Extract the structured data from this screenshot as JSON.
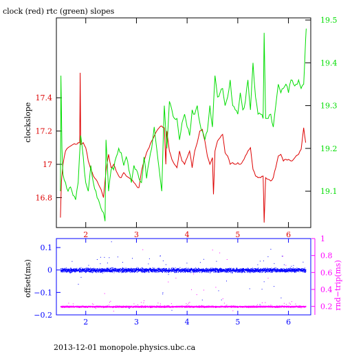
{
  "title": "clock (red) rtc (green) slopes",
  "footer": "2013-12-01 monopole.physics.ubc.ca",
  "colors": {
    "red": "#dd0000",
    "green": "#00dd00",
    "blue": "#0000ff",
    "magenta": "#ff00ff",
    "black": "#000000"
  },
  "chart_data": [
    {
      "type": "line",
      "title": "clock (red) rtc (green) slopes",
      "xlim": [
        1.42,
        6.44
      ],
      "x_ticks": [
        2,
        3,
        4,
        5,
        6
      ],
      "ylabel": "clockslope",
      "ylim": [
        16.62,
        17.88
      ],
      "y_ticks": [
        16.8,
        17,
        17.2,
        17.4
      ],
      "y2lim": [
        19.015,
        19.505
      ],
      "y2_ticks": [
        19.1,
        19.2,
        19.3,
        19.4,
        19.5
      ],
      "grid": false,
      "series": [
        {
          "name": "clock",
          "axis": "left",
          "color": "red",
          "x": [
            1.5,
            1.52,
            1.55,
            1.6,
            1.65,
            1.7,
            1.75,
            1.8,
            1.85,
            1.88,
            1.89,
            1.9,
            1.95,
            2.0,
            2.05,
            2.1,
            2.15,
            2.2,
            2.25,
            2.3,
            2.35,
            2.4,
            2.45,
            2.5,
            2.55,
            2.6,
            2.65,
            2.7,
            2.75,
            2.8,
            2.85,
            2.9,
            2.95,
            3.0,
            3.05,
            3.1,
            3.15,
            3.2,
            3.25,
            3.3,
            3.35,
            3.4,
            3.45,
            3.5,
            3.55,
            3.58,
            3.6,
            3.65,
            3.7,
            3.75,
            3.8,
            3.85,
            3.9,
            3.95,
            4.0,
            4.05,
            4.1,
            4.15,
            4.2,
            4.25,
            4.3,
            4.35,
            4.4,
            4.45,
            4.5,
            4.52,
            4.55,
            4.6,
            4.65,
            4.7,
            4.75,
            4.8,
            4.85,
            4.9,
            4.95,
            5.0,
            5.05,
            5.1,
            5.15,
            5.2,
            5.25,
            5.3,
            5.35,
            5.4,
            5.45,
            5.5,
            5.52,
            5.55,
            5.6,
            5.65,
            5.7,
            5.75,
            5.8,
            5.85,
            5.9,
            5.95,
            6.0,
            6.05,
            6.1,
            6.15,
            6.2,
            6.25,
            6.3,
            6.34
          ],
          "values": [
            16.68,
            16.9,
            17.0,
            17.08,
            17.1,
            17.11,
            17.12,
            17.12,
            17.13,
            17.13,
            17.55,
            17.12,
            17.13,
            17.1,
            17.02,
            16.97,
            16.93,
            16.91,
            16.88,
            16.85,
            16.8,
            16.96,
            17.06,
            16.98,
            17.0,
            16.96,
            16.93,
            16.92,
            16.95,
            16.93,
            16.92,
            16.91,
            16.89,
            16.87,
            16.86,
            16.96,
            17.02,
            17.07,
            17.1,
            17.14,
            17.17,
            17.2,
            17.22,
            17.23,
            17.22,
            17.0,
            17.2,
            17.08,
            17.03,
            17.0,
            16.98,
            17.08,
            17.02,
            17.0,
            17.04,
            17.08,
            16.98,
            17.08,
            17.13,
            17.2,
            17.21,
            17.14,
            17.05,
            17.0,
            17.04,
            16.82,
            17.08,
            17.14,
            17.16,
            17.18,
            17.07,
            17.05,
            17.0,
            17.01,
            17.0,
            17.01,
            17.0,
            17.02,
            17.05,
            17.08,
            17.1,
            16.97,
            16.93,
            16.92,
            16.92,
            16.93,
            16.65,
            16.92,
            16.91,
            16.9,
            16.92,
            16.98,
            17.05,
            17.06,
            17.02,
            17.03,
            17.03,
            17.02,
            17.03,
            17.05,
            17.06,
            17.09,
            17.22,
            17.13
          ]
        },
        {
          "name": "rtc",
          "axis": "right",
          "color": "green",
          "x": [
            1.5,
            1.51,
            1.53,
            1.55,
            1.6,
            1.65,
            1.7,
            1.75,
            1.8,
            1.85,
            1.9,
            1.95,
            2.0,
            2.05,
            2.1,
            2.15,
            2.2,
            2.25,
            2.3,
            2.35,
            2.38,
            2.4,
            2.45,
            2.5,
            2.55,
            2.6,
            2.65,
            2.7,
            2.75,
            2.8,
            2.85,
            2.9,
            2.95,
            3.0,
            3.05,
            3.1,
            3.15,
            3.2,
            3.25,
            3.3,
            3.35,
            3.4,
            3.45,
            3.5,
            3.55,
            3.6,
            3.65,
            3.7,
            3.75,
            3.8,
            3.85,
            3.9,
            3.95,
            4.0,
            4.05,
            4.1,
            4.15,
            4.2,
            4.25,
            4.3,
            4.35,
            4.4,
            4.45,
            4.5,
            4.55,
            4.6,
            4.65,
            4.7,
            4.75,
            4.8,
            4.85,
            4.9,
            4.95,
            5.0,
            5.05,
            5.1,
            5.15,
            5.2,
            5.25,
            5.3,
            5.35,
            5.4,
            5.45,
            5.5,
            5.52,
            5.55,
            5.6,
            5.65,
            5.7,
            5.75,
            5.8,
            5.85,
            5.9,
            5.95,
            6.0,
            6.05,
            6.1,
            6.15,
            6.2,
            6.25,
            6.3,
            6.33,
            6.35
          ],
          "values": [
            19.1,
            19.37,
            19.2,
            19.14,
            19.12,
            19.1,
            19.11,
            19.09,
            19.08,
            19.12,
            19.23,
            19.18,
            19.12,
            19.1,
            19.16,
            19.12,
            19.1,
            19.08,
            19.06,
            19.05,
            19.03,
            19.22,
            19.1,
            19.15,
            19.15,
            19.18,
            19.2,
            19.19,
            19.16,
            19.18,
            19.15,
            19.12,
            19.16,
            19.15,
            19.13,
            19.12,
            19.18,
            19.13,
            19.17,
            19.2,
            19.25,
            19.2,
            19.15,
            19.1,
            19.3,
            19.2,
            19.31,
            19.29,
            19.27,
            19.27,
            19.22,
            19.26,
            19.28,
            19.25,
            19.23,
            19.29,
            19.28,
            19.3,
            19.26,
            19.24,
            19.22,
            19.24,
            19.3,
            19.25,
            19.37,
            19.32,
            19.33,
            19.34,
            19.3,
            19.32,
            19.36,
            19.3,
            19.29,
            19.28,
            19.33,
            19.29,
            19.31,
            19.36,
            19.29,
            19.4,
            19.32,
            19.28,
            19.28,
            19.27,
            19.47,
            19.27,
            19.27,
            19.28,
            19.25,
            19.3,
            19.35,
            19.33,
            19.34,
            19.35,
            19.33,
            19.36,
            19.35,
            19.35,
            19.36,
            19.34,
            19.35,
            19.43,
            19.48
          ]
        }
      ]
    },
    {
      "type": "scatter",
      "xlim": [
        1.42,
        6.44
      ],
      "x_ticks": [
        2,
        3,
        4,
        5,
        6
      ],
      "ylabel": "offset(ms)",
      "ylim": [
        -0.2,
        0.14
      ],
      "y_ticks": [
        -0.2,
        -0.1,
        0,
        0.1
      ],
      "y_tick_labels": [
        "−0.2",
        "−0.1",
        "0",
        "0.1"
      ],
      "y2label": "rnd−trip(ms)",
      "y2lim": [
        0.1,
        1.0
      ],
      "y2_ticks": [
        0.2,
        0.4,
        0.6,
        0.8,
        1
      ],
      "grid": false,
      "series": [
        {
          "name": "offset",
          "axis": "left",
          "color": "blue",
          "x_range": [
            1.5,
            6.34
          ],
          "center": 0.0,
          "spread": 0.012
        },
        {
          "name": "rnd-trip",
          "axis": "right",
          "color": "magenta",
          "x_range": [
            1.5,
            6.34
          ],
          "center": 0.2,
          "spread": 0.012
        }
      ]
    }
  ]
}
